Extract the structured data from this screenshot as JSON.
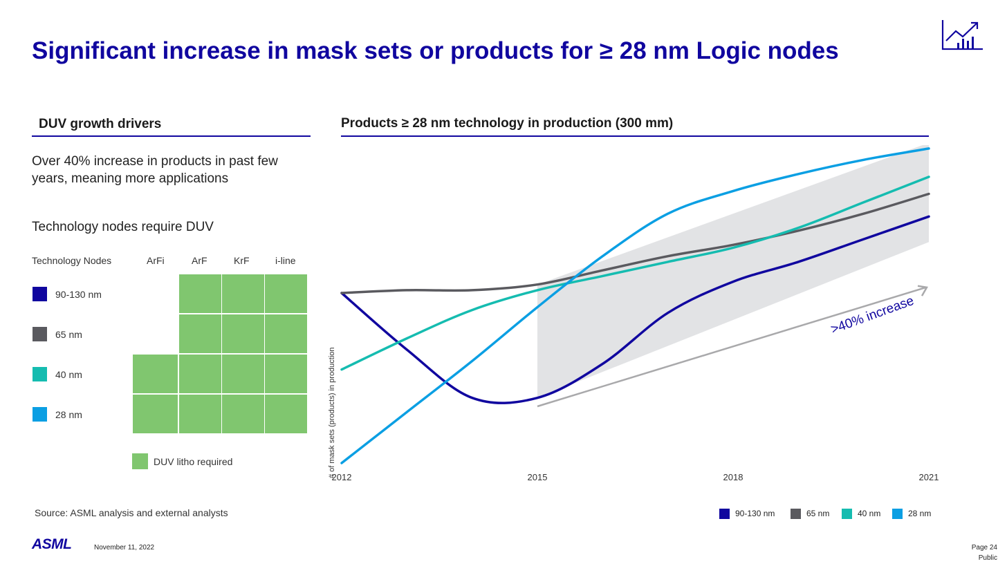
{
  "page": {
    "title": "Significant increase in mask sets or products for ≥ 28 nm Logic nodes",
    "icon": "growth-chart-icon",
    "accent_color": "#10069f"
  },
  "left": {
    "heading": "DUV growth drivers",
    "text1": "Over 40% increase in products in past few years, meaning more applications",
    "text2": "Technology nodes require DUV",
    "table": {
      "header": "Technology Nodes",
      "columns": [
        "ArFi",
        "ArF",
        "KrF",
        "i-line"
      ],
      "rows": [
        {
          "label": "90-130 nm",
          "color": "#10069f",
          "duv": [
            false,
            true,
            true,
            true
          ]
        },
        {
          "label": "65 nm",
          "color": "#5a5a5f",
          "duv": [
            false,
            true,
            true,
            true
          ]
        },
        {
          "label": "40 nm",
          "color": "#15bcb0",
          "duv": [
            true,
            true,
            true,
            true
          ]
        },
        {
          "label": "28 nm",
          "color": "#0b9fe3",
          "duv": [
            true,
            true,
            true,
            true
          ]
        }
      ],
      "legend": "DUV litho required",
      "cell_color": "#80c66f"
    },
    "source": "Source: ASML analysis and external analysts"
  },
  "chart_data": {
    "type": "line",
    "title": "Products ≥ 28 nm technology in production (300 mm)",
    "xlabel": "",
    "ylabel": "# of mask sets (products) in production",
    "x_ticks": [
      "2012",
      "2015",
      "2018",
      "2021"
    ],
    "xlim": [
      2012,
      2021
    ],
    "annotation": ">40% increase",
    "highlight_range": [
      2015,
      2021
    ],
    "series": [
      {
        "name": "90-130 nm",
        "color": "#10069f",
        "points": [
          [
            2012,
            0.6
          ],
          [
            2013,
            0.4
          ],
          [
            2014,
            0.23
          ],
          [
            2015,
            0.23
          ],
          [
            2016,
            0.35
          ],
          [
            2017,
            0.53
          ],
          [
            2018,
            0.64
          ],
          [
            2019,
            0.71
          ],
          [
            2020,
            0.79
          ],
          [
            2021,
            0.87
          ]
        ]
      },
      {
        "name": "65 nm",
        "color": "#5a5a5f",
        "points": [
          [
            2012,
            0.6
          ],
          [
            2013,
            0.61
          ],
          [
            2014,
            0.61
          ],
          [
            2015,
            0.63
          ],
          [
            2016,
            0.68
          ],
          [
            2017,
            0.73
          ],
          [
            2018,
            0.77
          ],
          [
            2019,
            0.82
          ],
          [
            2020,
            0.88
          ],
          [
            2021,
            0.95
          ]
        ]
      },
      {
        "name": "40 nm",
        "color": "#15bcb0",
        "points": [
          [
            2012,
            0.33
          ],
          [
            2013,
            0.44
          ],
          [
            2014,
            0.54
          ],
          [
            2015,
            0.61
          ],
          [
            2016,
            0.66
          ],
          [
            2017,
            0.71
          ],
          [
            2018,
            0.76
          ],
          [
            2019,
            0.83
          ],
          [
            2020,
            0.92
          ],
          [
            2021,
            1.01
          ]
        ]
      },
      {
        "name": "28 nm",
        "color": "#0b9fe3",
        "points": [
          [
            2012,
            0.0
          ],
          [
            2013,
            0.18
          ],
          [
            2014,
            0.36
          ],
          [
            2015,
            0.55
          ],
          [
            2016,
            0.73
          ],
          [
            2017,
            0.88
          ],
          [
            2018,
            0.96
          ],
          [
            2019,
            1.02
          ],
          [
            2020,
            1.07
          ],
          [
            2021,
            1.11
          ]
        ]
      }
    ]
  },
  "footer": {
    "logo": "ASML",
    "date": "November 11, 2022",
    "page": "Page 24",
    "classification": "Public"
  }
}
